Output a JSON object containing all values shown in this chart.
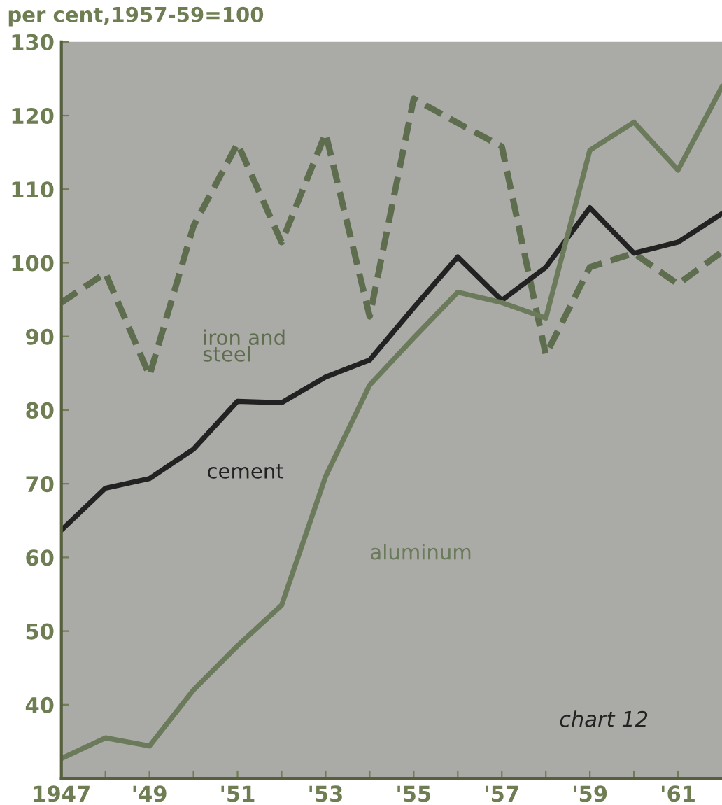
{
  "chart_data": {
    "type": "line",
    "ylabel": "per cent,1957-59=100",
    "x": [
      1947,
      1948,
      1949,
      1950,
      1951,
      1952,
      1953,
      1954,
      1955,
      1956,
      1957,
      1958,
      1959,
      1960,
      1961,
      1962
    ],
    "series": [
      {
        "name": "iron and\nsteel",
        "color": "#5e6d4e",
        "line_style": "dashed",
        "values": [
          94.6,
          98.6,
          84.7,
          105,
          116.2,
          102.8,
          117.6,
          92.7,
          122.3,
          119,
          115.8,
          87.5,
          99.4,
          101.3,
          97.1,
          101.5
        ]
      },
      {
        "name": "cement",
        "color": "#222222",
        "line_style": "solid",
        "values": [
          63.7,
          69.4,
          70.7,
          74.7,
          81.2,
          81,
          84.5,
          86.8,
          93.9,
          100.8,
          94.9,
          99.4,
          107.5,
          101.3,
          102.8,
          106.7
        ]
      },
      {
        "name": "aluminum",
        "color": "#6b7a5a",
        "line_style": "solid",
        "values": [
          32.7,
          35.5,
          34.4,
          42,
          48,
          53.5,
          71,
          83.4,
          89.8,
          96,
          94.6,
          92.5,
          115.3,
          119.1,
          112.6,
          123.9
        ]
      }
    ],
    "xlim": [
      1947,
      1962
    ],
    "ylim": [
      30,
      130
    ],
    "xticks": [
      {
        "value": 1947,
        "label": "1947"
      },
      {
        "value": 1948,
        "label": null
      },
      {
        "value": 1949,
        "label": "'49"
      },
      {
        "value": 1950,
        "label": null
      },
      {
        "value": 1951,
        "label": "'51"
      },
      {
        "value": 1952,
        "label": null
      },
      {
        "value": 1953,
        "label": "'53"
      },
      {
        "value": 1954,
        "label": null
      },
      {
        "value": 1955,
        "label": "'55"
      },
      {
        "value": 1956,
        "label": null
      },
      {
        "value": 1957,
        "label": "'57"
      },
      {
        "value": 1958,
        "label": null
      },
      {
        "value": 1959,
        "label": "'59"
      },
      {
        "value": 1960,
        "label": null
      },
      {
        "value": 1961,
        "label": "'61"
      }
    ],
    "yticks": [
      40,
      50,
      60,
      70,
      80,
      90,
      100,
      110,
      120,
      130
    ],
    "grid": false,
    "legend": false,
    "annotations": [
      "chart 12"
    ]
  }
}
